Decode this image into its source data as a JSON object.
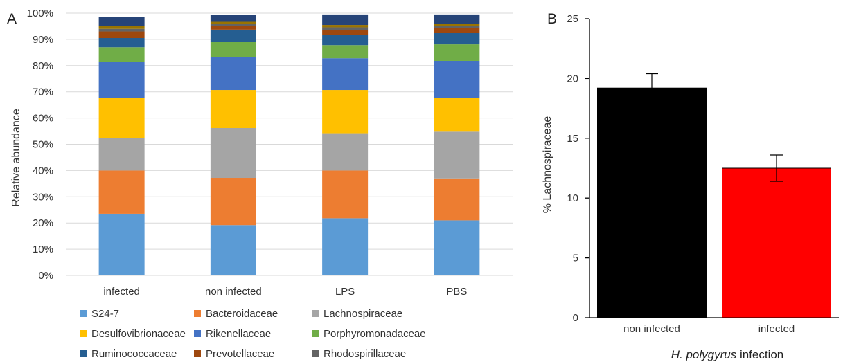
{
  "chart_data": [
    {
      "type": "bar",
      "stacked": true,
      "panel_label": "A",
      "ylabel": "Relative abundance",
      "ylim": [
        0,
        100
      ],
      "yticks": [
        "0%",
        "10%",
        "20%",
        "30%",
        "40%",
        "50%",
        "60%",
        "70%",
        "80%",
        "90%",
        "100%"
      ],
      "categories": [
        "infected",
        "non infected",
        "LPS",
        "PBS"
      ],
      "grid": true,
      "legend_position": "bottom",
      "series": [
        {
          "name": "S24-7",
          "color": "#5b9bd5",
          "values": [
            23.5,
            19.2,
            21.8,
            21.0
          ]
        },
        {
          "name": "Bacteroidaceae",
          "color": "#ed7d31",
          "values": [
            16.5,
            18.0,
            18.2,
            16.0
          ]
        },
        {
          "name": "Lachnospiraceae",
          "color": "#a5a5a5",
          "values": [
            12.3,
            19.0,
            14.2,
            17.8
          ]
        },
        {
          "name": "Desulfovibrionaceae",
          "color": "#ffc000",
          "values": [
            15.5,
            14.5,
            16.5,
            13.0
          ]
        },
        {
          "name": "Rikenellaceae",
          "color": "#4472c4",
          "values": [
            13.7,
            12.5,
            12.1,
            14.0
          ]
        },
        {
          "name": "Porphyromonadaceae",
          "color": "#70ad47",
          "values": [
            5.5,
            5.8,
            5.0,
            6.3
          ]
        },
        {
          "name": "Ruminococcaceae",
          "color": "#255e91",
          "values": [
            3.5,
            4.7,
            4.0,
            4.5
          ]
        },
        {
          "name": "Prevotellaceae",
          "color": "#9e480e",
          "values": [
            2.5,
            1.5,
            1.8,
            1.8
          ]
        },
        {
          "name": "Rhodospirillaceae",
          "color": "#636363",
          "values": [
            1.0,
            0.8,
            1.0,
            0.8
          ]
        },
        {
          "name": "",
          "color": "#997300",
          "values": [
            1.0,
            0.7,
            0.9,
            0.8
          ]
        },
        {
          "name": "",
          "color": "#264478",
          "values": [
            3.5,
            2.6,
            4.0,
            3.5
          ]
        }
      ]
    },
    {
      "type": "bar",
      "panel_label": "B",
      "ylabel": "% Lachnospiraceae",
      "xlabel": "H. polygyrus infection",
      "xlabel_italic": "H. polygyrus",
      "xlabel_rest": " infection",
      "ylim": [
        0,
        25
      ],
      "yticks": [
        "0",
        "5",
        "10",
        "15",
        "20",
        "25"
      ],
      "categories": [
        "non infected",
        "infected"
      ],
      "values": [
        19.2,
        12.5
      ],
      "errors": [
        1.2,
        1.1
      ],
      "colors": [
        "#000000",
        "#ff0000"
      ],
      "grid": false
    }
  ]
}
